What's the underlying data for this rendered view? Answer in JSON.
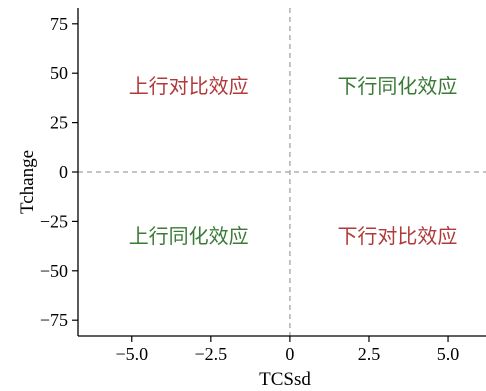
{
  "chart_data": {
    "type": "scatter",
    "title": "",
    "xlabel": "TCSsd",
    "ylabel": "Tchange",
    "xlim": [
      -6.7,
      6.2
    ],
    "ylim": [
      -83,
      83
    ],
    "xticks": [
      -5.0,
      -2.5,
      0,
      2.5,
      5.0
    ],
    "xtick_labels": [
      "−5.0",
      "−2.5",
      "0",
      "2.5",
      "5.0"
    ],
    "yticks": [
      -75,
      -50,
      -25,
      0,
      25,
      50,
      75
    ],
    "ytick_labels": [
      "−75",
      "−50",
      "−25",
      "0",
      "25",
      "50",
      "75"
    ],
    "grid": false,
    "reference_lines": [
      {
        "orientation": "vertical",
        "value": 0,
        "style": "dashed",
        "color": "#b0b0b0"
      },
      {
        "orientation": "horizontal",
        "value": 0,
        "style": "dashed",
        "color": "#b0b0b0"
      }
    ],
    "annotations": [
      {
        "text": "上行对比效应",
        "x": -3.2,
        "y": 40,
        "color": "#b03a3a"
      },
      {
        "text": "下行同化效应",
        "x": 3.4,
        "y": 40,
        "color": "#3a7a36"
      },
      {
        "text": "上行同化效应",
        "x": -3.2,
        "y": -36,
        "color": "#3a7a36"
      },
      {
        "text": "下行对比效应",
        "x": 3.4,
        "y": -36,
        "color": "#b03a3a"
      }
    ]
  }
}
